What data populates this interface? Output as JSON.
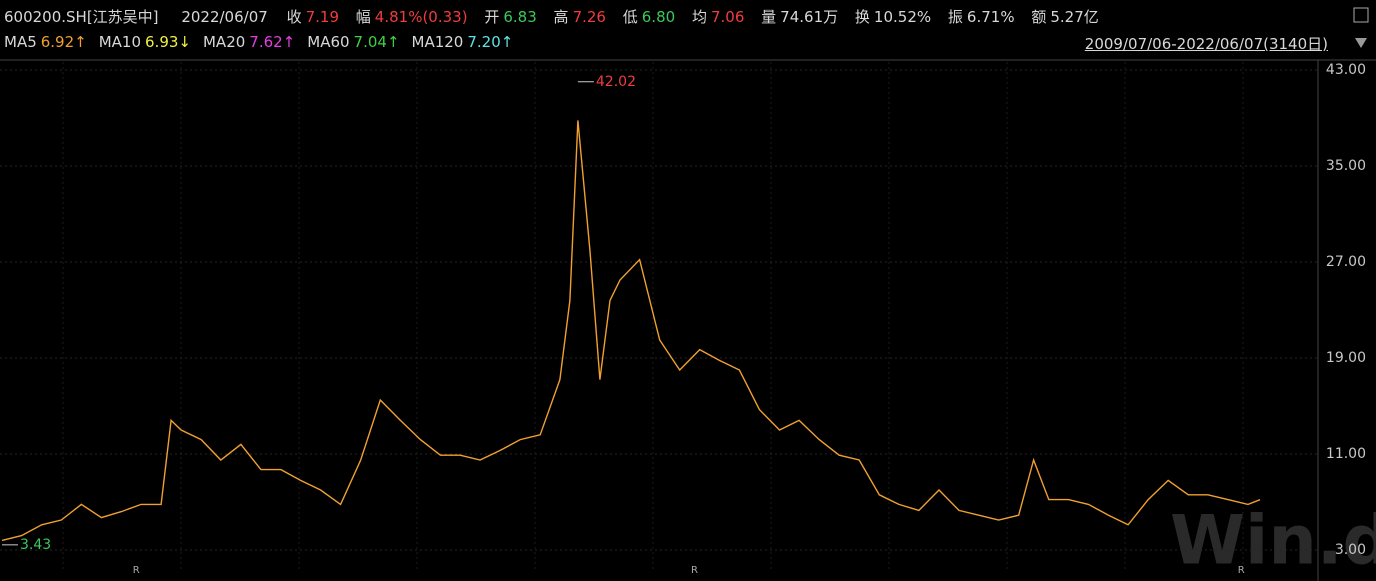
{
  "header": {
    "code": "600200.SH[江苏吴中]",
    "date": "2022/06/07",
    "close_label": "收",
    "close": "7.19",
    "change_label": "幅",
    "change": "4.81%(0.33)",
    "open_label": "开",
    "open": "6.83",
    "high_label": "高",
    "high": "7.26",
    "low_label": "低",
    "low": "6.80",
    "avg_label": "均",
    "avg": "7.06",
    "volume_label": "量",
    "volume": "74.61万",
    "turnover_label": "换",
    "turnover": "10.52%",
    "amplitude_label": "振",
    "amplitude": "6.71%",
    "amount_label": "额",
    "amount": "5.27亿"
  },
  "ma": [
    {
      "name": "MA5",
      "value": "6.92↑",
      "color": "#f0a030"
    },
    {
      "name": "MA10",
      "value": "6.93↓",
      "color": "#f0f040"
    },
    {
      "name": "MA20",
      "value": "7.62↑",
      "color": "#e040e0"
    },
    {
      "name": "MA60",
      "value": "7.04↑",
      "color": "#40d040"
    },
    {
      "name": "MA120",
      "value": "7.20↑",
      "color": "#60e0e0"
    }
  ],
  "range": "2009/07/06-2022/06/07(3140日)",
  "watermark": "Win.d",
  "chart_data": {
    "type": "line",
    "xlim": [
      1,
      3140
    ],
    "ylim": [
      3,
      43
    ],
    "yticks": [
      {
        "value": 3,
        "label": "3.00"
      },
      {
        "value": 11,
        "label": "11.00"
      },
      {
        "value": 19,
        "label": "19.00"
      },
      {
        "value": 27,
        "label": "27.00"
      },
      {
        "value": 35,
        "label": "35.00"
      },
      {
        "value": 43,
        "label": "43.00"
      }
    ],
    "grid": true,
    "x": [
      1,
      50,
      100,
      149,
      199,
      249,
      299,
      348,
      398,
      423,
      448,
      498,
      547,
      597,
      647,
      697,
      746,
      796,
      846,
      896,
      945,
      995,
      1045,
      1095,
      1144,
      1194,
      1244,
      1294,
      1344,
      1393,
      1418,
      1438,
      1468,
      1493,
      1518,
      1543,
      1592,
      1642,
      1692,
      1742,
      1791,
      1841,
      1891,
      1941,
      1990,
      2040,
      2090,
      2140,
      2190,
      2239,
      2289,
      2339,
      2389,
      2438,
      2488,
      2538,
      2575,
      2613,
      2662,
      2712,
      2762,
      2811,
      2861,
      2911,
      2961,
      3010,
      3060,
      3110,
      3140
    ],
    "series": [
      {
        "color": "#f0a030",
        "values": [
          3.8,
          4.2,
          5.1,
          5.5,
          6.8,
          5.7,
          6.2,
          6.8,
          6.8,
          13.8,
          13,
          12.2,
          10.5,
          11.8,
          9.7,
          9.7,
          8.8,
          8,
          6.8,
          10.5,
          15.5,
          13.8,
          12.2,
          10.9,
          10.9,
          10.5,
          11.3,
          12.2,
          12.6,
          17.2,
          23.8,
          38.8,
          28,
          17.2,
          23.8,
          25.5,
          27.2,
          20.5,
          18,
          19.7,
          18.8,
          18,
          14.7,
          13,
          13.8,
          12.2,
          10.9,
          10.5,
          7.6,
          6.8,
          6.3,
          8,
          6.3,
          5.9,
          5.5,
          5.9,
          10.5,
          7.2,
          7.2,
          6.8,
          5.9,
          5.1,
          7.2,
          8.8,
          7.6,
          7.6,
          7.2,
          6.8,
          7.19
        ]
      }
    ],
    "annotations": [
      {
        "text": "42.02",
        "x": 1438,
        "value": 42.02,
        "color": "#f03c3c"
      },
      {
        "text": "3.43",
        "x": 1,
        "value": 3.43,
        "color": "#3cc85a"
      }
    ],
    "r_marks": {
      "text": "R",
      "x": [
        336,
        1729,
        3093
      ]
    }
  }
}
